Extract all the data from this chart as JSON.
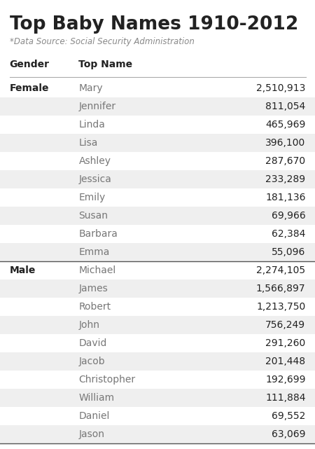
{
  "title": "Top Baby Names 1910-2012",
  "subtitle": "*Data Source: Social Security Administration",
  "female_rows": [
    [
      "Female",
      "Mary",
      "2,510,913"
    ],
    [
      "",
      "Jennifer",
      "811,054"
    ],
    [
      "",
      "Linda",
      "465,969"
    ],
    [
      "",
      "Lisa",
      "396,100"
    ],
    [
      "",
      "Ashley",
      "287,670"
    ],
    [
      "",
      "Jessica",
      "233,289"
    ],
    [
      "",
      "Emily",
      "181,136"
    ],
    [
      "",
      "Susan",
      "69,966"
    ],
    [
      "",
      "Barbara",
      "62,384"
    ],
    [
      "",
      "Emma",
      "55,096"
    ]
  ],
  "male_rows": [
    [
      "Male",
      "Michael",
      "2,274,105"
    ],
    [
      "",
      "James",
      "1,566,897"
    ],
    [
      "",
      "Robert",
      "1,213,750"
    ],
    [
      "",
      "John",
      "756,249"
    ],
    [
      "",
      "David",
      "291,260"
    ],
    [
      "",
      "Jacob",
      "201,448"
    ],
    [
      "",
      "Christopher",
      "192,699"
    ],
    [
      "",
      "William",
      "111,884"
    ],
    [
      "",
      "Daniel",
      "69,552"
    ],
    [
      "",
      "Jason",
      "63,069"
    ]
  ],
  "bg_color": "#ffffff",
  "stripe_color": "#efefef",
  "header_line_color": "#aaaaaa",
  "group_line_color": "#555555",
  "gender_text_color": "#222222",
  "name_text_color": "#777777",
  "count_text_color": "#222222",
  "title_color": "#222222",
  "subtitle_color": "#888888"
}
